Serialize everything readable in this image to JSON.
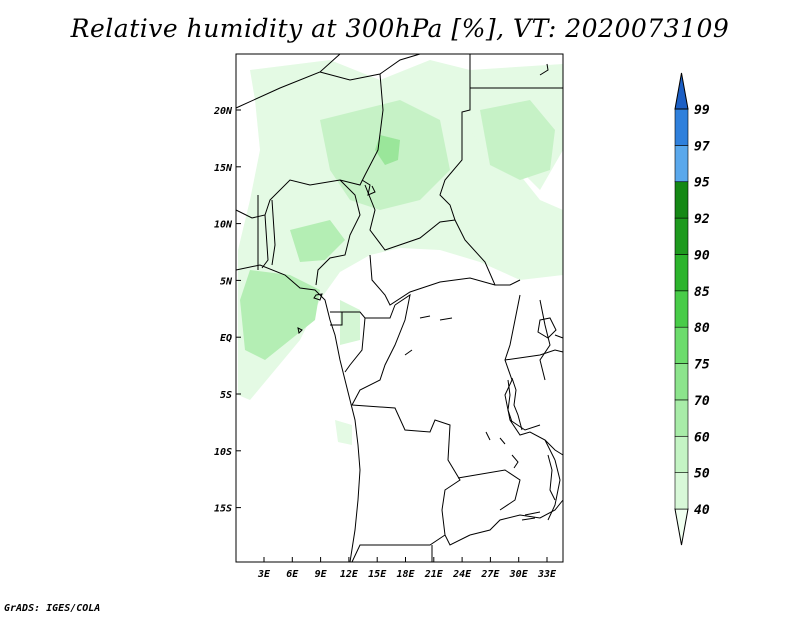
{
  "title": "Relative humidity at 300hPa [%], VT: 2020073109",
  "credit": "GrADS: IGES/COLA",
  "map": {
    "lat_labels": [
      "20N",
      "15N",
      "10N",
      "5N",
      "EQ",
      "5S",
      "10S",
      "15S"
    ],
    "lon_labels": [
      "3E",
      "6E",
      "9E",
      "12E",
      "15E",
      "18E",
      "21E",
      "24E",
      "27E",
      "30E",
      "33E"
    ]
  },
  "colorbar": {
    "labels": [
      "40",
      "50",
      "60",
      "70",
      "75",
      "80",
      "85",
      "90",
      "92",
      "95",
      "97",
      "99"
    ],
    "colors": [
      "#f0fff0",
      "#d8f8d8",
      "#c4f4c4",
      "#a8eca8",
      "#8ce48c",
      "#6cdc6c",
      "#48cc48",
      "#2cb42c",
      "#1e9a1e",
      "#158815",
      "#5aa8ec",
      "#2f80dc",
      "#1c5fc4"
    ]
  }
}
